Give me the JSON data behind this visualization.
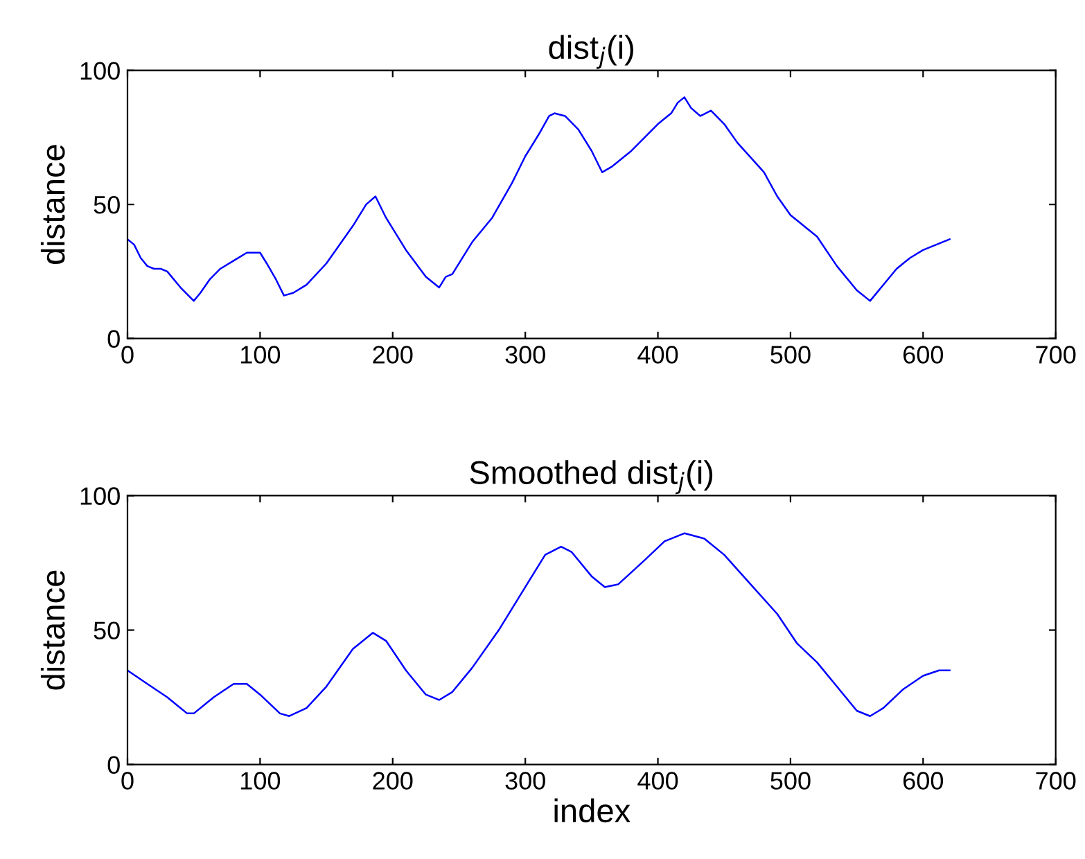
{
  "chart_data": [
    {
      "type": "line",
      "title": "dist$_{j}$(i)",
      "ylabel": "distance",
      "xlim": [
        0,
        700
      ],
      "xticks": [
        0,
        100,
        200,
        300,
        400,
        500,
        600,
        700
      ],
      "ylim": [
        0,
        100
      ],
      "yticks": [
        0,
        50,
        100
      ],
      "grid": false,
      "legend": false,
      "series": [
        {
          "color": "#0000ff",
          "x": [
            0,
            5,
            10,
            15,
            20,
            25,
            30,
            40,
            50,
            55,
            62,
            70,
            80,
            90,
            100,
            105,
            112,
            118,
            125,
            135,
            150,
            170,
            180,
            187,
            195,
            210,
            225,
            235,
            240,
            245,
            260,
            275,
            290,
            300,
            310,
            318,
            322,
            330,
            340,
            350,
            358,
            365,
            380,
            400,
            410,
            415,
            420,
            425,
            432,
            440,
            450,
            460,
            480,
            490,
            500,
            510,
            520,
            535,
            550,
            560,
            570,
            580,
            590,
            600,
            610,
            620
          ],
          "values": [
            37,
            35,
            30,
            27,
            26,
            26,
            25,
            19,
            14,
            17,
            22,
            26,
            29,
            32,
            32,
            28,
            22,
            16,
            17,
            20,
            28,
            42,
            50,
            53,
            45,
            33,
            23,
            19,
            23,
            24,
            36,
            45,
            58,
            68,
            76,
            83,
            84,
            83,
            78,
            70,
            62,
            64,
            70,
            80,
            84,
            88,
            90,
            86,
            83,
            85,
            80,
            73,
            62,
            53,
            46,
            42,
            38,
            27,
            18,
            14,
            20,
            26,
            30,
            33,
            35,
            37
          ]
        }
      ]
    },
    {
      "type": "line",
      "title": "Smoothed dist$_{j}$(i)",
      "xlabel": "index",
      "ylabel": "distance",
      "xlim": [
        0,
        700
      ],
      "xticks": [
        0,
        100,
        200,
        300,
        400,
        500,
        600,
        700
      ],
      "ylim": [
        0,
        100
      ],
      "yticks": [
        0,
        50,
        100
      ],
      "grid": false,
      "legend": false,
      "series": [
        {
          "color": "#0000ff",
          "x": [
            0,
            15,
            30,
            45,
            50,
            65,
            80,
            90,
            100,
            115,
            122,
            135,
            150,
            170,
            185,
            195,
            210,
            225,
            235,
            245,
            260,
            280,
            300,
            315,
            327,
            335,
            350,
            360,
            370,
            390,
            405,
            420,
            435,
            450,
            470,
            490,
            505,
            520,
            535,
            550,
            560,
            570,
            585,
            600,
            612,
            620
          ],
          "values": [
            35,
            30,
            25,
            19,
            19,
            25,
            30,
            30,
            26,
            19,
            18,
            21,
            29,
            43,
            49,
            46,
            35,
            26,
            24,
            27,
            36,
            50,
            66,
            78,
            81,
            79,
            70,
            66,
            67,
            76,
            83,
            86,
            84,
            78,
            67,
            56,
            45,
            38,
            29,
            20,
            18,
            21,
            28,
            33,
            35,
            35
          ]
        }
      ]
    }
  ]
}
